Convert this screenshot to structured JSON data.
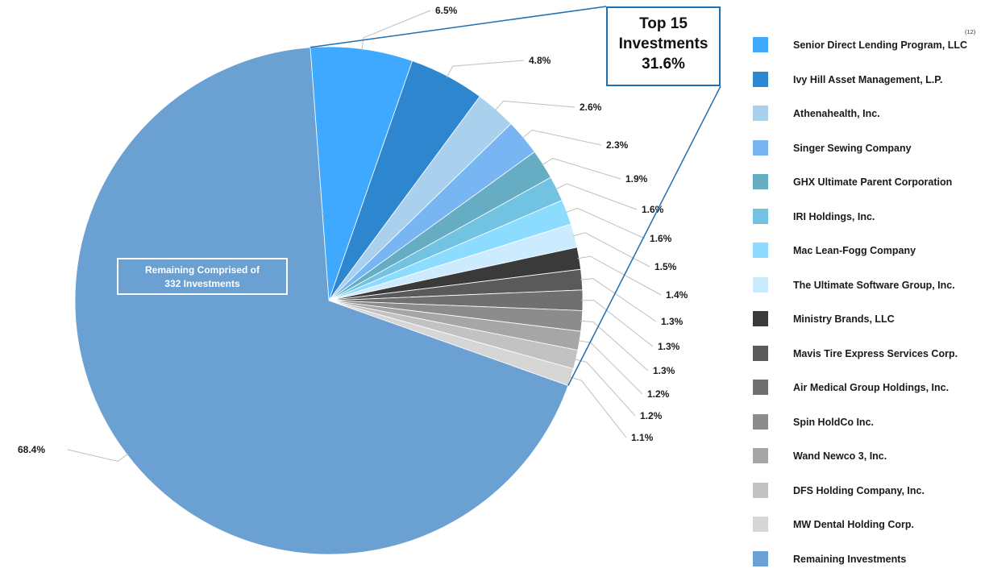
{
  "chart_data": {
    "type": "pie",
    "top_box": {
      "line1": "Top 15",
      "line2": "Investments",
      "line3": "31.6%"
    },
    "center_label": {
      "line1": "Remaining Comprised of",
      "line2": "332 Investments"
    },
    "footnote": "(12)",
    "slices": [
      {
        "name": "Senior Direct Lending Program, LLC",
        "value": 6.5,
        "label": "6.5%",
        "color": "#3fa9ff"
      },
      {
        "name": "Ivy Hill Asset Management, L.P.",
        "value": 4.8,
        "label": "4.8%",
        "color": "#2e86cf"
      },
      {
        "name": "Athenahealth, Inc.",
        "value": 2.6,
        "label": "2.6%",
        "color": "#a9d0ec"
      },
      {
        "name": "Singer Sewing Company",
        "value": 2.3,
        "label": "2.3%",
        "color": "#77b6f2"
      },
      {
        "name": "GHX Ultimate Parent Corporation",
        "value": 1.9,
        "label": "1.9%",
        "color": "#66adc4"
      },
      {
        "name": "IRI Holdings, Inc.",
        "value": 1.6,
        "label": "1.6%",
        "color": "#72c3e2"
      },
      {
        "name": "Mac Lean-Fogg Company",
        "value": 1.6,
        "label": "1.6%",
        "color": "#8cdcff"
      },
      {
        "name": "The Ultimate Software Group, Inc.",
        "value": 1.5,
        "label": "1.5%",
        "color": "#cdebff"
      },
      {
        "name": "Ministry Brands, LLC",
        "value": 1.4,
        "label": "1.4%",
        "color": "#3a3a3a"
      },
      {
        "name": "Mavis Tire Express Services Corp.",
        "value": 1.3,
        "label": "1.3%",
        "color": "#5a5a5a"
      },
      {
        "name": "Air Medical Group Holdings, Inc.",
        "value": 1.3,
        "label": "1.3%",
        "color": "#707070"
      },
      {
        "name": "Spin HoldCo Inc.",
        "value": 1.3,
        "label": "1.3%",
        "color": "#8c8c8c"
      },
      {
        "name": "Wand Newco 3, Inc.",
        "value": 1.2,
        "label": "1.2%",
        "color": "#a6a6a6"
      },
      {
        "name": "DFS Holding Company, Inc.",
        "value": 1.2,
        "label": "1.2%",
        "color": "#c2c2c2"
      },
      {
        "name": "MW Dental Holding Corp.",
        "value": 1.1,
        "label": "1.1%",
        "color": "#d6d6d6"
      },
      {
        "name": "Remaining Investments",
        "value": 68.4,
        "label": "68.4%",
        "color": "#6aa0d2"
      }
    ]
  }
}
